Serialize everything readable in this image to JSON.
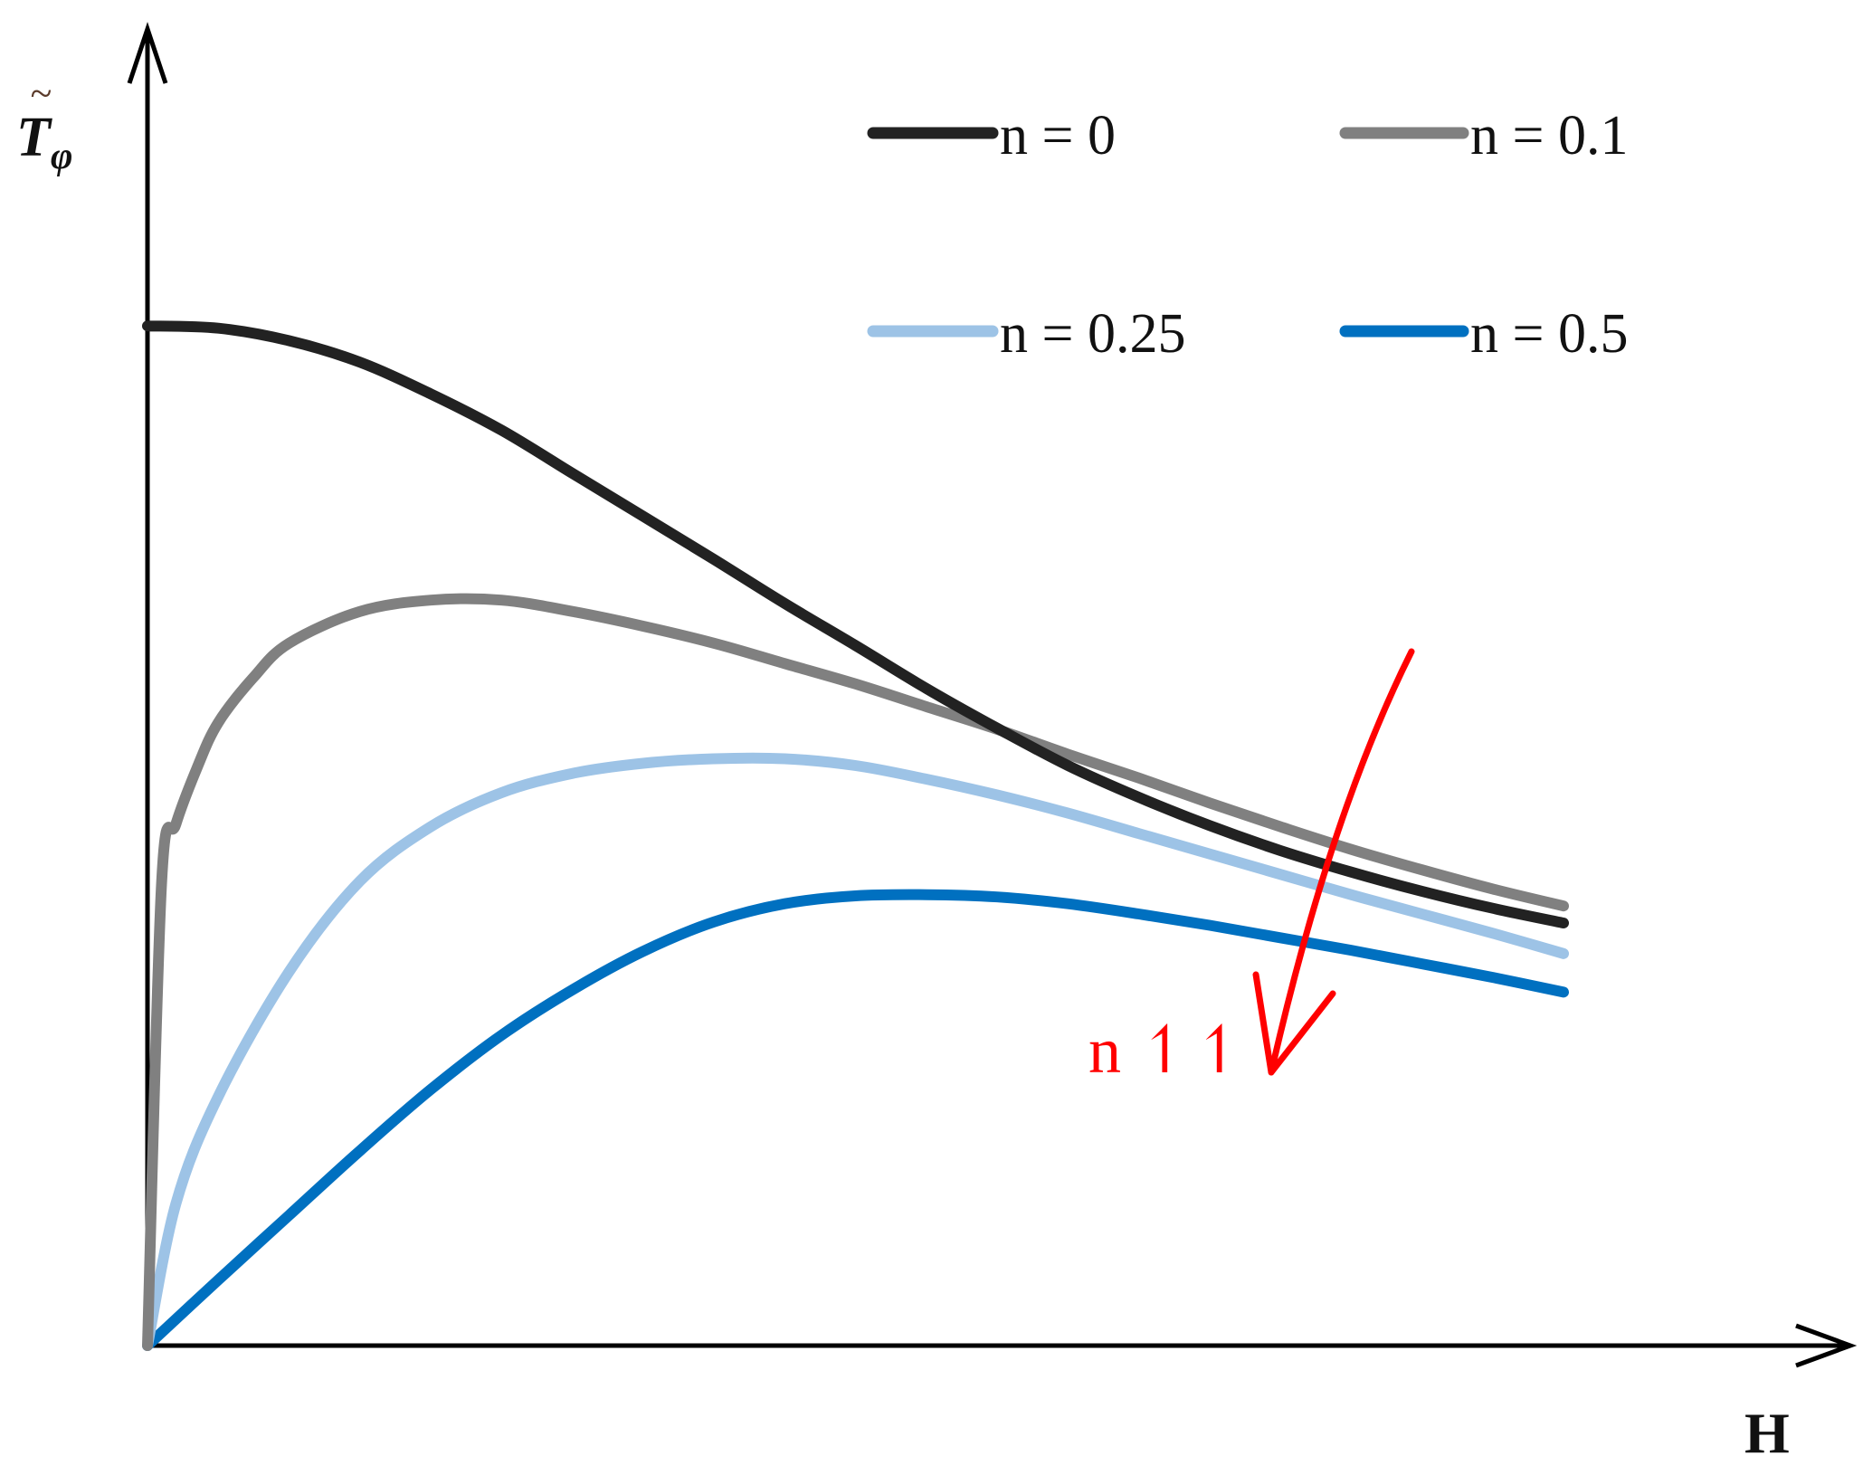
{
  "chart_data": {
    "type": "line",
    "title": "",
    "xlabel": "H",
    "ylabel": "T̃φ",
    "xlim": [
      0,
      1
    ],
    "ylim": [
      0,
      1
    ],
    "grid": false,
    "legend_position": "top-right",
    "x_ticks": [],
    "y_ticks": [],
    "series": [
      {
        "name": "n = 0",
        "color": "#222222",
        "x": [
          0,
          0.05,
          0.1,
          0.15,
          0.2,
          0.25,
          0.3,
          0.35,
          0.4,
          0.45,
          0.5,
          0.55,
          0.6,
          0.65,
          0.7,
          0.75,
          0.8,
          0.85,
          0.9,
          0.95,
          1.0
        ],
        "y": [
          0.9,
          0.898,
          0.887,
          0.868,
          0.84,
          0.808,
          0.77,
          0.732,
          0.694,
          0.655,
          0.618,
          0.58,
          0.545,
          0.512,
          0.484,
          0.459,
          0.437,
          0.418,
          0.401,
          0.386,
          0.373
        ]
      },
      {
        "name": "n = 0.1",
        "color": "#808080",
        "x": [
          0,
          0.01,
          0.02,
          0.035,
          0.05,
          0.075,
          0.1,
          0.15,
          0.2,
          0.25,
          0.3,
          0.35,
          0.4,
          0.45,
          0.5,
          0.55,
          0.6,
          0.65,
          0.7,
          0.75,
          0.8,
          0.85,
          0.9,
          0.95,
          1.0
        ],
        "y": [
          0,
          0.41,
          0.46,
          0.51,
          0.55,
          0.59,
          0.62,
          0.648,
          0.658,
          0.658,
          0.648,
          0.635,
          0.62,
          0.602,
          0.584,
          0.564,
          0.544,
          0.522,
          0.501,
          0.479,
          0.458,
          0.438,
          0.42,
          0.403,
          0.388
        ]
      },
      {
        "name": "n = 0.25",
        "color": "#9dc3e6",
        "x": [
          0,
          0.02,
          0.05,
          0.1,
          0.15,
          0.2,
          0.25,
          0.3,
          0.35,
          0.4,
          0.45,
          0.5,
          0.55,
          0.6,
          0.65,
          0.7,
          0.75,
          0.8,
          0.85,
          0.9,
          0.95,
          1.0
        ],
        "y": [
          0,
          0.125,
          0.22,
          0.33,
          0.41,
          0.458,
          0.488,
          0.505,
          0.514,
          0.518,
          0.518,
          0.512,
          0.5,
          0.486,
          0.47,
          0.452,
          0.434,
          0.416,
          0.398,
          0.381,
          0.364,
          0.346
        ]
      },
      {
        "name": "n = 0.5",
        "color": "#0070c0",
        "x": [
          0,
          0.05,
          0.1,
          0.15,
          0.2,
          0.25,
          0.3,
          0.35,
          0.4,
          0.45,
          0.5,
          0.55,
          0.6,
          0.65,
          0.7,
          0.75,
          0.8,
          0.85,
          0.9,
          0.95,
          1.0
        ],
        "y": [
          0,
          0.058,
          0.115,
          0.172,
          0.226,
          0.274,
          0.314,
          0.348,
          0.374,
          0.39,
          0.397,
          0.398,
          0.396,
          0.39,
          0.381,
          0.371,
          0.36,
          0.349,
          0.337,
          0.325,
          0.312
        ]
      }
    ],
    "annotations": [
      {
        "text": "n ↿↿",
        "color": "#ff0000",
        "meaning": "arrow indicating curves decrease as n increases"
      }
    ]
  }
}
